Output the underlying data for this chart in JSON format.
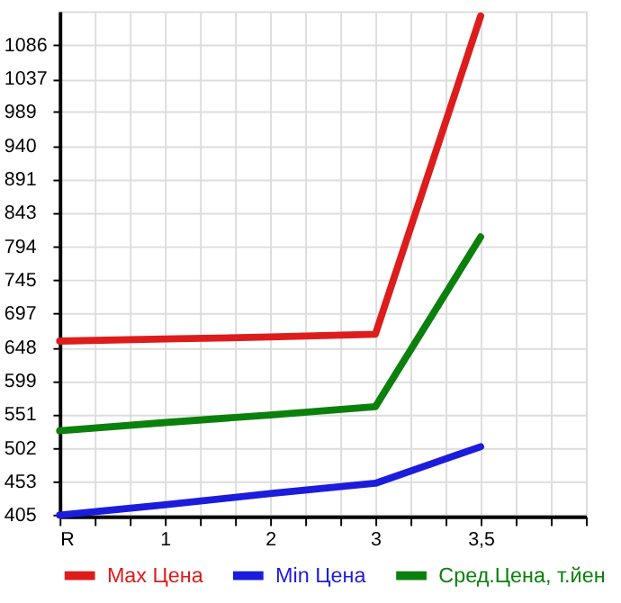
{
  "chart_data": {
    "type": "line",
    "categories": [
      "R",
      "1",
      "2",
      "3",
      "3,5"
    ],
    "series": [
      {
        "name": "Max Цена",
        "color": "#dd1c1c",
        "values": [
          657,
          660,
          663,
          667,
          1128
        ]
      },
      {
        "name": "Min Цена",
        "color": "#1c1cdd",
        "values": [
          405,
          420,
          436,
          451,
          504
        ]
      },
      {
        "name": "Сред.Цена, т.йен",
        "color": "#0c800c",
        "values": [
          527,
          539,
          550,
          562,
          808
        ]
      }
    ],
    "ylim": [
      403,
      1135
    ],
    "yticks": [
      405,
      453,
      502,
      551,
      599,
      648,
      697,
      745,
      794,
      843,
      891,
      940,
      989,
      1037,
      1086
    ],
    "grid": true,
    "legend": "bottom",
    "marker": "none",
    "line_style": "solid"
  }
}
